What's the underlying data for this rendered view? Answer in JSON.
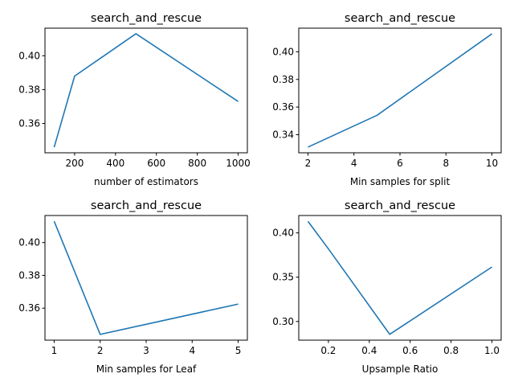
{
  "colors": {
    "line": "#1f77b4",
    "axes": "#000000",
    "background": "#ffffff"
  },
  "chart_data": [
    {
      "type": "line",
      "title": "search_and_rescue",
      "xlabel": "number of estimators",
      "ylabel": "",
      "x": [
        100,
        200,
        500,
        1000
      ],
      "series": [
        {
          "values": [
            0.346,
            0.388,
            0.413,
            0.373
          ]
        }
      ],
      "xlim": [
        55,
        1045
      ],
      "ylim": [
        0.3427,
        0.4163
      ],
      "xticks": [
        200,
        400,
        600,
        800,
        1000
      ],
      "xtick_labels": [
        "200",
        "400",
        "600",
        "800",
        "1000"
      ],
      "yticks": [
        0.36,
        0.38,
        0.4
      ],
      "ytick_labels": [
        "0.36",
        "0.38",
        "0.40"
      ],
      "grid": false
    },
    {
      "type": "line",
      "title": "search_and_rescue",
      "xlabel": "Min samples for split",
      "ylabel": "",
      "x": [
        2,
        5,
        10
      ],
      "series": [
        {
          "values": [
            0.331,
            0.354,
            0.413
          ]
        }
      ],
      "xlim": [
        1.6,
        10.4
      ],
      "ylim": [
        0.3269,
        0.4171
      ],
      "xticks": [
        2,
        4,
        6,
        8,
        10
      ],
      "xtick_labels": [
        "2",
        "4",
        "6",
        "8",
        "10"
      ],
      "yticks": [
        0.34,
        0.36,
        0.38,
        0.4
      ],
      "ytick_labels": [
        "0.34",
        "0.36",
        "0.38",
        "0.40"
      ],
      "grid": false
    },
    {
      "type": "line",
      "title": "search_and_rescue",
      "xlabel": "Min samples for Leaf",
      "ylabel": "",
      "x": [
        1,
        2,
        5
      ],
      "series": [
        {
          "values": [
            0.413,
            0.344,
            0.3625
          ]
        }
      ],
      "xlim": [
        0.8,
        5.2
      ],
      "ylim": [
        0.3405,
        0.4165
      ],
      "xticks": [
        1,
        2,
        3,
        4,
        5
      ],
      "xtick_labels": [
        "1",
        "2",
        "3",
        "4",
        "5"
      ],
      "yticks": [
        0.36,
        0.38,
        0.4
      ],
      "ytick_labels": [
        "0.36",
        "0.38",
        "0.40"
      ],
      "grid": false
    },
    {
      "type": "line",
      "title": "search_and_rescue",
      "xlabel": "Upsample Ratio",
      "ylabel": "",
      "x": [
        0.1,
        0.2,
        0.5,
        1.0
      ],
      "series": [
        {
          "values": [
            0.413,
            0.382,
            0.2855,
            0.3615
          ]
        }
      ],
      "xlim": [
        0.055,
        1.045
      ],
      "ylim": [
        0.2789,
        0.4196
      ],
      "xticks": [
        0.2,
        0.4,
        0.6,
        0.8,
        1.0
      ],
      "xtick_labels": [
        "0.2",
        "0.4",
        "0.6",
        "0.8",
        "1.0"
      ],
      "yticks": [
        0.3,
        0.35,
        0.4
      ],
      "ytick_labels": [
        "0.30",
        "0.35",
        "0.40"
      ],
      "grid": false
    }
  ]
}
